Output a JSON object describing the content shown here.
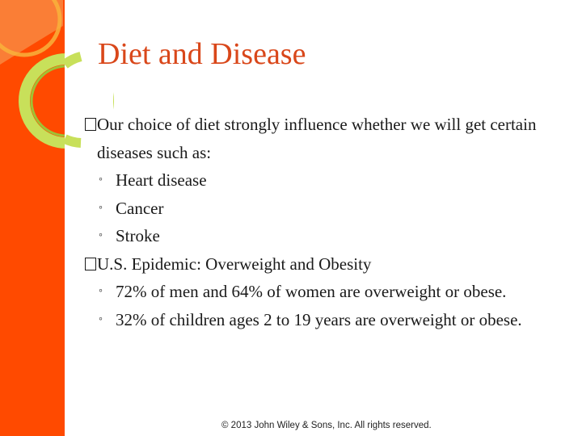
{
  "slide": {
    "title": "Diet and Disease",
    "bullets": [
      {
        "text": "Our choice of diet strongly influence whether we will get certain diseases such as:",
        "sub": [
          "Heart disease",
          "Cancer",
          "Stroke"
        ]
      },
      {
        "text": "U.S. Epidemic: Overweight and Obesity",
        "sub": [
          "72% of men and 64% of women are overweight or obese.",
          "32% of children ages 2 to 19 years are overweight or obese."
        ]
      }
    ],
    "footer": "© 2013 John Wiley & Sons, Inc. All rights reserved."
  },
  "colors": {
    "sidebar": "#ff4a00",
    "title": "#d9471a",
    "ring_light": "#c8e05a",
    "ring_dark": "#9fc234"
  },
  "icons": {
    "bullet": "square-bullet-icon",
    "sub_bullet": "ring-bullet-icon"
  }
}
